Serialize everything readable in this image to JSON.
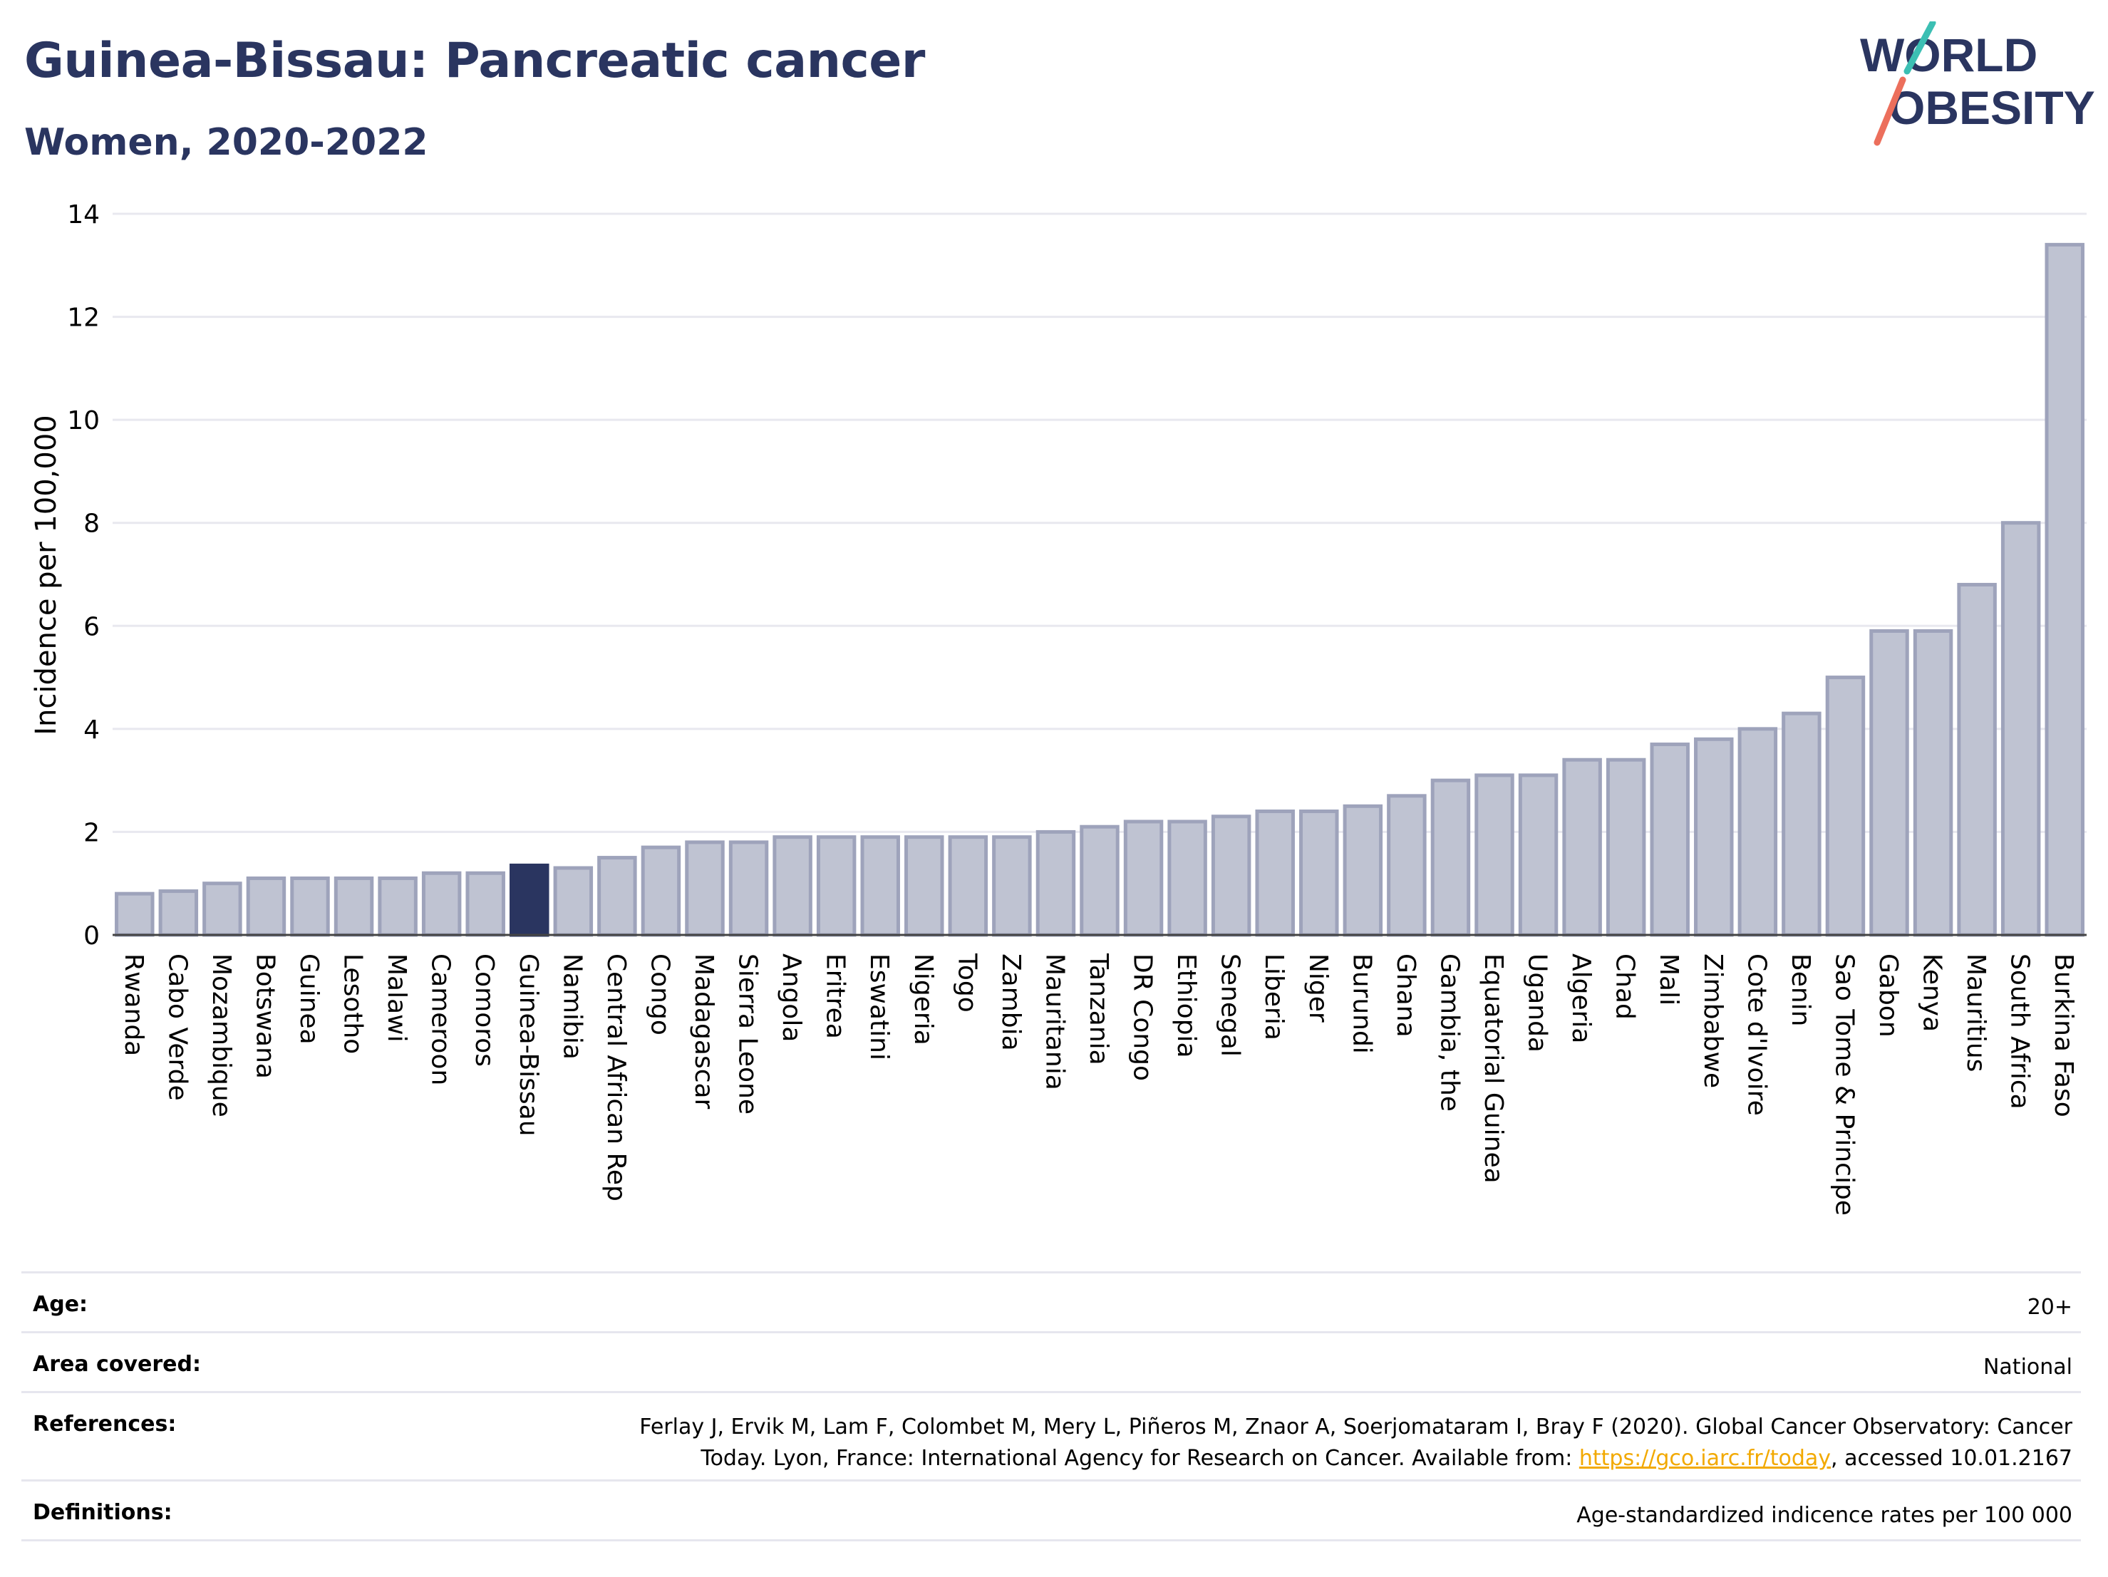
{
  "header": {
    "title": "Guinea-Bissau: Pancreatic cancer",
    "subtitle": "Women, 2020-2022"
  },
  "logo": {
    "line1": "WORLD",
    "line2": "OBESITY"
  },
  "colors": {
    "title": "#2a3560",
    "bar_fill": "#bfc3d2",
    "bar_stroke": "#9ea3bb",
    "highlight_fill": "#2a3560",
    "grid": "#e8e8ef",
    "logo_teal": "#3cbfb3",
    "logo_coral": "#ec6f5c"
  },
  "chart_data": {
    "type": "bar",
    "ylabel": "Incidence per 100,000",
    "ylim": [
      0,
      14
    ],
    "yticks": [
      0,
      2,
      4,
      6,
      8,
      10,
      12,
      14
    ],
    "grid": true,
    "highlight": "Guinea-Bissau",
    "categories": [
      "Rwanda",
      "Cabo Verde",
      "Mozambique",
      "Botswana",
      "Guinea",
      "Lesotho",
      "Malawi",
      "Cameroon",
      "Comoros",
      "Guinea-Bissau",
      "Namibia",
      "Central African Rep",
      "Congo",
      "Madagascar",
      "Sierra Leone",
      "Angola",
      "Eritrea",
      "Eswatini",
      "Nigeria",
      "Togo",
      "Zambia",
      "Mauritania",
      "Tanzania",
      "DR Congo",
      "Ethiopia",
      "Senegal",
      "Liberia",
      "Niger",
      "Burundi",
      "Ghana",
      "Gambia, the",
      "Equatorial Guinea",
      "Uganda",
      "Algeria",
      "Chad",
      "Mali",
      "Zimbabwe",
      "Cote d'Ivoire",
      "Benin",
      "Sao Tome & Principe",
      "Gabon",
      "Kenya",
      "Mauritius",
      "South Africa",
      "Burkina Faso"
    ],
    "values": [
      0.8,
      0.85,
      1.0,
      1.1,
      1.1,
      1.1,
      1.1,
      1.2,
      1.2,
      1.35,
      1.3,
      1.5,
      1.7,
      1.8,
      1.8,
      1.9,
      1.9,
      1.9,
      1.9,
      1.9,
      1.9,
      2.0,
      2.1,
      2.2,
      2.2,
      2.3,
      2.4,
      2.4,
      2.5,
      2.7,
      3.0,
      3.1,
      3.1,
      3.4,
      3.4,
      3.7,
      3.8,
      4.0,
      4.3,
      5.0,
      5.9,
      5.9,
      6.8,
      8.0,
      13.4
    ]
  },
  "meta": {
    "age_label": "Age:",
    "age_value": "20+",
    "area_label": "Area covered:",
    "area_value": "National",
    "references_label": "References:",
    "references_line1": "Ferlay J, Ervik M, Lam F, Colombet M, Mery L, Piñeros M, Znaor A, Soerjomataram I, Bray F (2020). Global Cancer Observatory: Cancer",
    "references_line2_pre": "Today. Lyon, France: International Agency for Research on Cancer. Available from: ",
    "references_link": "https://gco.iarc.fr/today",
    "references_line2_post": ", accessed 10.01.2167",
    "definitions_label": "Definitions:",
    "definitions_value": "Age-standardized indicence rates per 100 000"
  }
}
